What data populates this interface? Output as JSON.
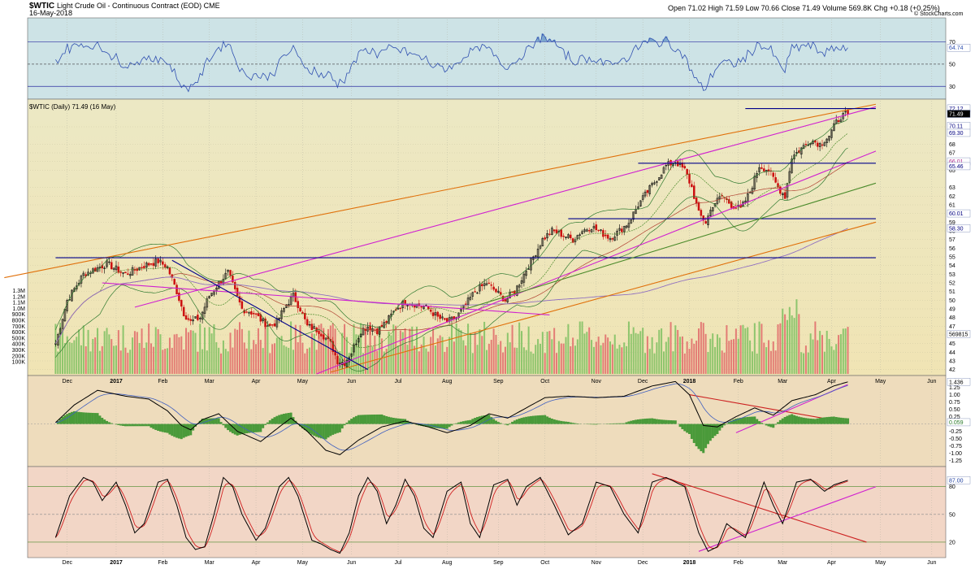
{
  "header": {
    "symbol": "$WTIC",
    "name": "Light Crude Oil - Continuous Contract (EOD) CME",
    "date": "16-May-2018",
    "quote": "Open 71.02  High 71.59  Low 70.66  Close 71.49  Volume 569.8K  Chg +0.18 (+0.25%)",
    "credit": "© StockCharts.com",
    "price_label": "$WTIC (Daily) 71.49 (16 May)"
  },
  "colors": {
    "rsi_bg": "#cde3e6",
    "price_bg_top": "#e8e6bf",
    "price_bg_bottom": "#ede6b9",
    "macd_bg": "#eedcbc",
    "stoch_bg": "#f2d6c6",
    "up_candle": "#000000",
    "down_candle": "#cc1010",
    "vol_up": "#7cc060",
    "vol_down": "#e06a6a",
    "magenta": "#d020d0",
    "orange": "#e0700a",
    "navy": "#00008b",
    "rsi_line": "#3050b0",
    "green_line": "#4a8a2a"
  },
  "chart_data": [
    {
      "panel": "rsi",
      "type": "line",
      "yticks": [
        "70",
        "50",
        "30"
      ],
      "ylim": [
        20,
        90
      ],
      "levels": [
        70,
        50,
        30
      ],
      "last_value_label": "64.74",
      "last_value": 64.7
    },
    {
      "panel": "price",
      "type": "candlestick",
      "title": "$WTIC (Daily) 71.49 (16 May)",
      "ylim": [
        41.5,
        73
      ],
      "yticks": [
        "70",
        "68",
        "67",
        "66",
        "65",
        "63",
        "62",
        "61",
        "60",
        "59",
        "58",
        "57",
        "56",
        "55",
        "54",
        "53",
        "52",
        "51",
        "50",
        "49",
        "48",
        "47",
        "46",
        "45",
        "44",
        "43",
        "42"
      ],
      "volume_ticks": [
        "1.3M",
        "1.2M",
        "1.1M",
        "1.0M",
        "900K",
        "800K",
        "700K",
        "600K",
        "500K",
        "400K",
        "300K",
        "200K",
        "100K"
      ],
      "price_keypoints": [
        [
          0,
          45
        ],
        [
          5,
          50
        ],
        [
          12,
          53
        ],
        [
          22,
          54.2
        ],
        [
          30,
          53
        ],
        [
          38,
          54
        ],
        [
          44,
          54.5
        ],
        [
          48,
          53.8
        ],
        [
          52,
          51
        ],
        [
          55,
          48.5
        ],
        [
          58,
          47.5
        ],
        [
          62,
          48
        ],
        [
          66,
          50.5
        ],
        [
          70,
          52
        ],
        [
          74,
          53.2
        ],
        [
          77,
          51
        ],
        [
          80,
          49
        ],
        [
          85,
          48.5
        ],
        [
          89,
          47.5
        ],
        [
          92,
          47
        ],
        [
          95,
          47.5
        ],
        [
          99,
          49.5
        ],
        [
          102,
          50.5
        ],
        [
          105,
          49
        ],
        [
          108,
          47
        ],
        [
          113,
          46.5
        ],
        [
          118,
          45
        ],
        [
          121,
          43
        ],
        [
          124,
          42.8
        ],
        [
          127,
          44
        ],
        [
          131,
          46.5
        ],
        [
          134,
          47
        ],
        [
          138,
          46.5
        ],
        [
          142,
          47.5
        ],
        [
          146,
          49
        ],
        [
          150,
          49.8
        ],
        [
          155,
          49.5
        ],
        [
          160,
          49
        ],
        [
          164,
          48
        ],
        [
          168,
          47.5
        ],
        [
          172,
          48
        ],
        [
          176,
          49.5
        ],
        [
          180,
          51
        ],
        [
          185,
          52
        ],
        [
          189,
          51
        ],
        [
          193,
          50
        ],
        [
          197,
          51
        ],
        [
          201,
          53
        ],
        [
          205,
          55
        ],
        [
          209,
          57
        ],
        [
          213,
          58
        ],
        [
          218,
          57.5
        ],
        [
          222,
          57
        ],
        [
          226,
          58
        ],
        [
          230,
          58.5
        ],
        [
          234,
          57.8
        ],
        [
          238,
          57.2
        ],
        [
          242,
          58
        ],
        [
          246,
          59
        ],
        [
          250,
          61
        ],
        [
          254,
          62.5
        ],
        [
          258,
          64
        ],
        [
          262,
          65.5
        ],
        [
          266,
          66
        ],
        [
          270,
          65
        ],
        [
          273,
          63
        ],
        [
          276,
          60
        ],
        [
          279,
          59
        ],
        [
          282,
          61
        ],
        [
          286,
          62
        ],
        [
          290,
          61
        ],
        [
          294,
          60.5
        ],
        [
          298,
          62.5
        ],
        [
          302,
          65.5
        ],
        [
          306,
          65
        ],
        [
          310,
          63
        ],
        [
          313,
          62
        ],
        [
          316,
          66.5
        ],
        [
          320,
          67.5
        ],
        [
          324,
          68.5
        ],
        [
          328,
          68
        ],
        [
          332,
          69
        ],
        [
          335,
          70.5
        ],
        [
          337,
          71.2
        ],
        [
          340,
          71.49
        ]
      ],
      "price_labels": [
        {
          "label": "72.12",
          "value": 72.12,
          "bg": "#ffffff",
          "fg": "#000080"
        },
        {
          "label": "71.49",
          "value": 71.5,
          "bg": "#000000",
          "fg": "#ffffff"
        },
        {
          "label": "70.11",
          "value": 70.11,
          "bg": "#ffffff",
          "fg": "#000080"
        },
        {
          "label": "69.30",
          "value": 69.3,
          "bg": "#ffffff",
          "fg": "#000080"
        },
        {
          "label": "66.01",
          "value": 66.01,
          "bg": "#ffffff",
          "fg": "#b03090"
        },
        {
          "label": "65.46",
          "value": 65.46,
          "bg": "#ffffff",
          "fg": "#000080"
        },
        {
          "label": "60.01",
          "value": 60.01,
          "bg": "#ffffff",
          "fg": "#000080"
        },
        {
          "label": "58.30",
          "value": 58.3,
          "bg": "#ffffff",
          "fg": "#000080"
        },
        {
          "label": "569815",
          "value": 46.1,
          "bg": "#ffffff",
          "fg": "#000000"
        }
      ],
      "trend_lines": [
        {
          "color": "#e0700a",
          "from": [
            -22,
            52.6
          ],
          "to": [
            352,
            72.6
          ]
        },
        {
          "color": "#e0700a",
          "from": [
            118,
            41.7
          ],
          "to": [
            352,
            59
          ]
        },
        {
          "color": "#d020d0",
          "from": [
            34,
            49.2
          ],
          "to": [
            352,
            72.3
          ]
        },
        {
          "color": "#d020d0",
          "from": [
            112,
            41.5
          ],
          "to": [
            352,
            67.2
          ]
        },
        {
          "color": "#d020d0",
          "from": [
            20,
            52
          ],
          "to": [
            212,
            48.3
          ]
        },
        {
          "color": "#00008b",
          "from": [
            0,
            54.9
          ],
          "to": [
            352,
            54.9
          ]
        },
        {
          "color": "#00008b",
          "from": [
            250,
            65.8
          ],
          "to": [
            352,
            65.8
          ]
        },
        {
          "color": "#00008b",
          "from": [
            296,
            72.1
          ],
          "to": [
            352,
            72.1
          ]
        },
        {
          "color": "#00008b",
          "from": [
            50,
            54.6
          ],
          "to": [
            134,
            42
          ]
        },
        {
          "color": "#00008b",
          "from": [
            220,
            59.4
          ],
          "to": [
            352,
            59.4
          ]
        },
        {
          "color": "#4a8a2a",
          "from": [
            176,
            49
          ],
          "to": [
            352,
            63.5
          ]
        }
      ]
    },
    {
      "panel": "macd",
      "type": "line",
      "yticks": [
        "1.50",
        "1.25",
        "1.00",
        "0.75",
        "0.50",
        "0.25",
        "0.00",
        "-0.25",
        "-0.50",
        "-0.75",
        "-1.00",
        "-1.25"
      ],
      "ylim": [
        -1.4,
        1.6
      ],
      "last_value_labels": [
        "1.436",
        "0.059"
      ],
      "macd_keypoints": [
        [
          0,
          0.05
        ],
        [
          8,
          0.65
        ],
        [
          18,
          1.15
        ],
        [
          30,
          0.95
        ],
        [
          40,
          0.85
        ],
        [
          48,
          0.45
        ],
        [
          54,
          -0.05
        ],
        [
          58,
          -0.2
        ],
        [
          63,
          0.15
        ],
        [
          70,
          0.35
        ],
        [
          78,
          -0.25
        ],
        [
          88,
          -0.6
        ],
        [
          96,
          -0.1
        ],
        [
          101,
          0.2
        ],
        [
          108,
          -0.25
        ],
        [
          116,
          -0.9
        ],
        [
          122,
          -1.05
        ],
        [
          130,
          -0.55
        ],
        [
          140,
          -0.1
        ],
        [
          150,
          0.1
        ],
        [
          160,
          -0.1
        ],
        [
          168,
          -0.3
        ],
        [
          178,
          -0.05
        ],
        [
          186,
          0.35
        ],
        [
          194,
          0.2
        ],
        [
          202,
          0.55
        ],
        [
          210,
          0.9
        ],
        [
          220,
          0.95
        ],
        [
          232,
          0.9
        ],
        [
          244,
          0.95
        ],
        [
          256,
          1.3
        ],
        [
          266,
          1.45
        ],
        [
          272,
          1.0
        ],
        [
          278,
          -0.05
        ],
        [
          284,
          -0.1
        ],
        [
          292,
          0.25
        ],
        [
          300,
          0.55
        ],
        [
          308,
          0.3
        ],
        [
          316,
          0.8
        ],
        [
          326,
          1.0
        ],
        [
          334,
          1.3
        ],
        [
          340,
          1.44
        ]
      ],
      "trend_lines": [
        {
          "color": "#cc2020",
          "from": [
            272,
            1.0
          ],
          "to": [
            340,
            0.05
          ]
        },
        {
          "color": "#d020d0",
          "from": [
            292,
            -0.3
          ],
          "to": [
            340,
            1.35
          ]
        }
      ]
    },
    {
      "panel": "stochastic",
      "type": "line",
      "yticks": [
        "80",
        "50",
        "20"
      ],
      "ylim": [
        5,
        100
      ],
      "last_value_labels": [
        "87.00",
        "80"
      ],
      "stoch_keypoints": [
        [
          0,
          25
        ],
        [
          6,
          70
        ],
        [
          12,
          90
        ],
        [
          16,
          85
        ],
        [
          20,
          65
        ],
        [
          26,
          85
        ],
        [
          30,
          60
        ],
        [
          34,
          30
        ],
        [
          38,
          40
        ],
        [
          44,
          85
        ],
        [
          48,
          88
        ],
        [
          52,
          60
        ],
        [
          56,
          25
        ],
        [
          60,
          12
        ],
        [
          64,
          15
        ],
        [
          68,
          50
        ],
        [
          72,
          90
        ],
        [
          76,
          80
        ],
        [
          80,
          50
        ],
        [
          86,
          22
        ],
        [
          90,
          35
        ],
        [
          96,
          80
        ],
        [
          100,
          90
        ],
        [
          104,
          70
        ],
        [
          110,
          22
        ],
        [
          114,
          18
        ],
        [
          118,
          12
        ],
        [
          122,
          8
        ],
        [
          126,
          30
        ],
        [
          130,
          70
        ],
        [
          134,
          90
        ],
        [
          138,
          75
        ],
        [
          142,
          40
        ],
        [
          146,
          60
        ],
        [
          150,
          88
        ],
        [
          154,
          70
        ],
        [
          158,
          35
        ],
        [
          162,
          25
        ],
        [
          168,
          75
        ],
        [
          174,
          85
        ],
        [
          178,
          40
        ],
        [
          182,
          25
        ],
        [
          188,
          82
        ],
        [
          194,
          88
        ],
        [
          198,
          60
        ],
        [
          202,
          80
        ],
        [
          208,
          90
        ],
        [
          214,
          60
        ],
        [
          220,
          28
        ],
        [
          226,
          40
        ],
        [
          232,
          85
        ],
        [
          238,
          80
        ],
        [
          244,
          50
        ],
        [
          250,
          30
        ],
        [
          256,
          85
        ],
        [
          262,
          90
        ],
        [
          270,
          80
        ],
        [
          276,
          30
        ],
        [
          280,
          10
        ],
        [
          284,
          15
        ],
        [
          288,
          40
        ],
        [
          292,
          32
        ],
        [
          296,
          25
        ],
        [
          300,
          55
        ],
        [
          304,
          85
        ],
        [
          308,
          60
        ],
        [
          312,
          40
        ],
        [
          318,
          85
        ],
        [
          324,
          88
        ],
        [
          330,
          75
        ],
        [
          334,
          82
        ],
        [
          340,
          87
        ]
      ],
      "trend_lines": [
        {
          "color": "#cc2020",
          "from": [
            256,
            94
          ],
          "to": [
            348,
            20
          ]
        },
        {
          "color": "#d020d0",
          "from": [
            276,
            10
          ],
          "to": [
            352,
            80
          ]
        }
      ]
    }
  ],
  "x_axis": {
    "months": [
      {
        "label": "Dec",
        "x": 5
      },
      {
        "label": "2017",
        "x": 26
      },
      {
        "label": "Feb",
        "x": 46
      },
      {
        "label": "Mar",
        "x": 66
      },
      {
        "label": "Apr",
        "x": 86
      },
      {
        "label": "May",
        "x": 106
      },
      {
        "label": "Jun",
        "x": 127
      },
      {
        "label": "Jul",
        "x": 147
      },
      {
        "label": "Aug",
        "x": 168
      },
      {
        "label": "Sep",
        "x": 190
      },
      {
        "label": "Oct",
        "x": 210
      },
      {
        "label": "Nov",
        "x": 232
      },
      {
        "label": "Dec",
        "x": 252
      },
      {
        "label": "2018",
        "x": 272
      },
      {
        "label": "Feb",
        "x": 293
      },
      {
        "label": "Mar",
        "x": 312
      },
      {
        "label": "Apr",
        "x": 333
      },
      {
        "label": "May",
        "x": 354
      },
      {
        "label": "Jun",
        "x": 376
      }
    ],
    "xlim": [
      -12,
      382
    ]
  }
}
